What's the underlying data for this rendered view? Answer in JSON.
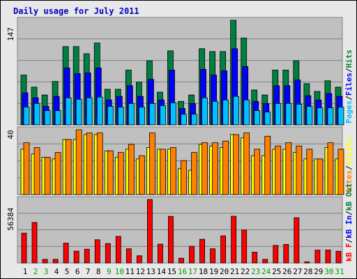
{
  "title": "Daily usage for July 2011",
  "days": [
    "1",
    "2",
    "3",
    "4",
    "5",
    "6",
    "7",
    "8",
    "9",
    "10",
    "11",
    "12",
    "13",
    "14",
    "15",
    "16",
    "17",
    "18",
    "19",
    "20",
    "21",
    "22",
    "23",
    "24",
    "25",
    "26",
    "27",
    "28",
    "29",
    "30",
    "31"
  ],
  "weekend_days": [
    "2",
    "3",
    "9",
    "10",
    "16",
    "17",
    "23",
    "24",
    "30",
    "31"
  ],
  "colors": {
    "hits": "#008040",
    "files": "#0000ff",
    "pages": "#00c0ff",
    "visits": "#ffff00",
    "sites": "#ff8000",
    "kb_in": "#0000ff",
    "kb_out": "#008040",
    "kb_f": "#ff0000",
    "day_normal": "#000000",
    "day_weekend": "#00a000"
  },
  "chart_data": [
    {
      "type": "bar",
      "panel": "hits-files-pages",
      "max_label": "147",
      "ylim": [
        0,
        147
      ],
      "legend": [
        "Pages",
        "Files",
        "Hits"
      ],
      "series": [
        {
          "name": "Hits",
          "values": [
            70,
            53,
            42,
            61,
            110,
            110,
            100,
            115,
            50,
            50,
            77,
            60,
            90,
            46,
            104,
            33,
            42,
            107,
            103,
            103,
            147,
            122,
            49,
            42,
            77,
            77,
            90,
            58,
            47,
            62,
            53
          ]
        },
        {
          "name": "Files",
          "values": [
            45,
            38,
            26,
            40,
            80,
            72,
            73,
            80,
            35,
            40,
            55,
            40,
            64,
            35,
            77,
            23,
            30,
            78,
            70,
            76,
            107,
            82,
            33,
            30,
            55,
            55,
            63,
            41,
            35,
            44,
            40
          ]
        },
        {
          "name": "Pages",
          "values": [
            25,
            30,
            20,
            20,
            38,
            36,
            38,
            39,
            26,
            25,
            30,
            25,
            30,
            27,
            31,
            15,
            15,
            38,
            33,
            35,
            40,
            35,
            20,
            18,
            30,
            30,
            29,
            26,
            24,
            24,
            25
          ]
        }
      ]
    },
    {
      "type": "bar",
      "panel": "visits-sites",
      "max_label": "40",
      "ylim": [
        0,
        40
      ],
      "legend": [
        "Sites",
        "Visits"
      ],
      "series": [
        {
          "name": "Visits",
          "values": [
            28,
            25,
            23,
            22,
            34,
            34,
            37,
            37,
            27,
            23,
            28,
            22,
            29,
            28,
            28,
            16,
            15,
            31,
            30,
            29,
            37,
            35,
            24,
            24,
            28,
            28,
            26,
            22,
            22,
            29,
            22
          ]
        },
        {
          "name": "Sites",
          "values": [
            32,
            29,
            23,
            26,
            34,
            40,
            38,
            38,
            27,
            26,
            31,
            24,
            38,
            28,
            29,
            21,
            26,
            32,
            32,
            33,
            37,
            38,
            28,
            36,
            30,
            32,
            30,
            28,
            22,
            32,
            28
          ]
        }
      ]
    },
    {
      "type": "bar",
      "panel": "kbytes",
      "max_label": "56384",
      "ylim": [
        0,
        56384
      ],
      "legend": [
        "kB F",
        "kB In",
        "kB Out"
      ],
      "series": [
        {
          "name": "kB F",
          "values": [
            26500,
            36000,
            3200,
            3200,
            17600,
            10500,
            12200,
            20600,
            17200,
            23600,
            12600,
            6400,
            56384,
            16700,
            41400,
            4200,
            14800,
            21000,
            12600,
            24100,
            41500,
            29300,
            9600,
            3200,
            15600,
            16500,
            40200,
            1000,
            11400,
            11500,
            10400
          ]
        }
      ]
    }
  ]
}
